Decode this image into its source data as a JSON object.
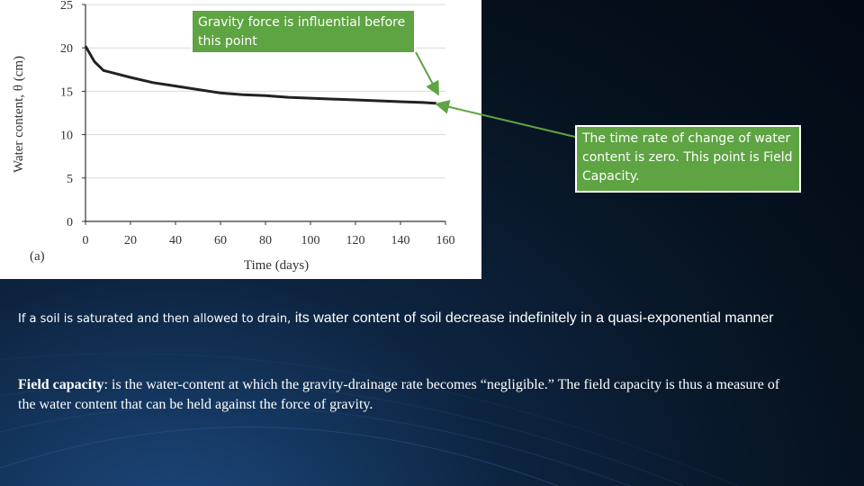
{
  "chart_data": {
    "type": "line",
    "xlabel": "Time (days)",
    "ylabel": "Water content, θ (cm)",
    "panel_label": "(a)",
    "xlim": [
      0,
      160
    ],
    "ylim": [
      0,
      25
    ],
    "x_ticks": [
      "0",
      "20",
      "40",
      "60",
      "80",
      "100",
      "120",
      "140",
      "160"
    ],
    "y_ticks": [
      "0",
      "5",
      "10",
      "15",
      "20",
      "25"
    ],
    "series": [
      {
        "x": [
          0,
          4,
          8,
          20,
          30,
          40,
          50,
          60,
          70,
          80,
          90,
          100,
          110,
          120,
          130,
          140,
          150,
          156
        ],
        "y": [
          20.2,
          18.4,
          17.4,
          16.6,
          16.0,
          15.6,
          15.2,
          14.8,
          14.6,
          14.5,
          14.3,
          14.2,
          14.1,
          14.0,
          13.9,
          13.8,
          13.7,
          13.6
        ]
      }
    ],
    "line_color": "#222222"
  },
  "callouts": {
    "gravity": "Gravity force is influential before this point",
    "field_capacity": "The time rate of change of water content is zero. This point is Field Capacity."
  },
  "text": {
    "line1_small": "If a soil is saturated and then allowed to drain,",
    "line1_rest": " its water content of soil decrease indefinitely in a quasi-exponential manner",
    "fc_term": "Field capacity",
    "fc_definition": ": is the water-content at which the gravity-drainage rate becomes “negligible.” The field capacity is thus a measure of the water content that can be held against the force of gravity."
  },
  "colors": {
    "callout_bg": "#5ea442",
    "arrow": "#5ea442"
  }
}
